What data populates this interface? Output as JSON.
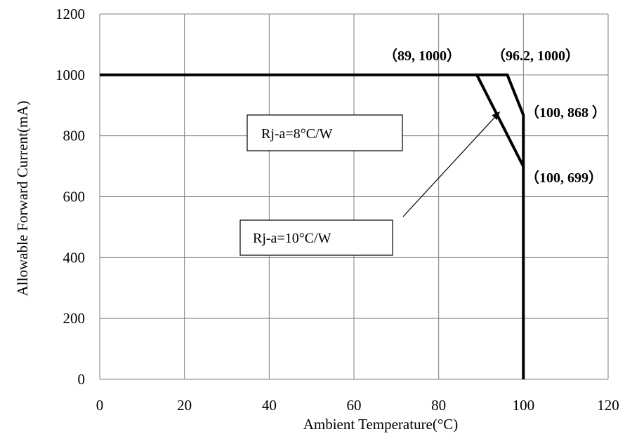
{
  "chart_data": {
    "type": "line",
    "title": "",
    "xlabel": "Ambient Temperature(°C)",
    "ylabel": "Allowable Forward Current(mA)",
    "xlim": [
      0,
      120
    ],
    "ylim": [
      0,
      1200
    ],
    "xticks": [
      0,
      20,
      40,
      60,
      80,
      100,
      120
    ],
    "yticks": [
      0,
      200,
      400,
      600,
      800,
      1000,
      1200
    ],
    "grid": true,
    "legend": "none",
    "series": [
      {
        "x": [
          0,
          96.2,
          100,
          100
        ],
        "y": [
          1000,
          1000,
          868,
          0
        ],
        "color": "#000000"
      },
      {
        "x": [
          89,
          100
        ],
        "y": [
          1000,
          699
        ],
        "color": "#000000"
      }
    ],
    "point_labels": [
      {
        "text": "（89,  1000）",
        "x": 89,
        "y": 1000
      },
      {
        "text": "（96.2,  1000）",
        "x": 96.2,
        "y": 1000
      },
      {
        "text": "（100, 868 ）",
        "x": 100,
        "y": 868
      },
      {
        "text": "（100,  699）",
        "x": 100,
        "y": 699
      }
    ],
    "annotations": [
      {
        "text": "Rj-a=8°C/W"
      },
      {
        "text": "Rj-a=10°C/W",
        "arrow_to": {
          "x": 94.5,
          "y": 880
        }
      }
    ],
    "colors": {
      "line": "#000000",
      "grid": "#7f7f7f",
      "box_border": "#000000",
      "background": "#ffffff"
    }
  }
}
